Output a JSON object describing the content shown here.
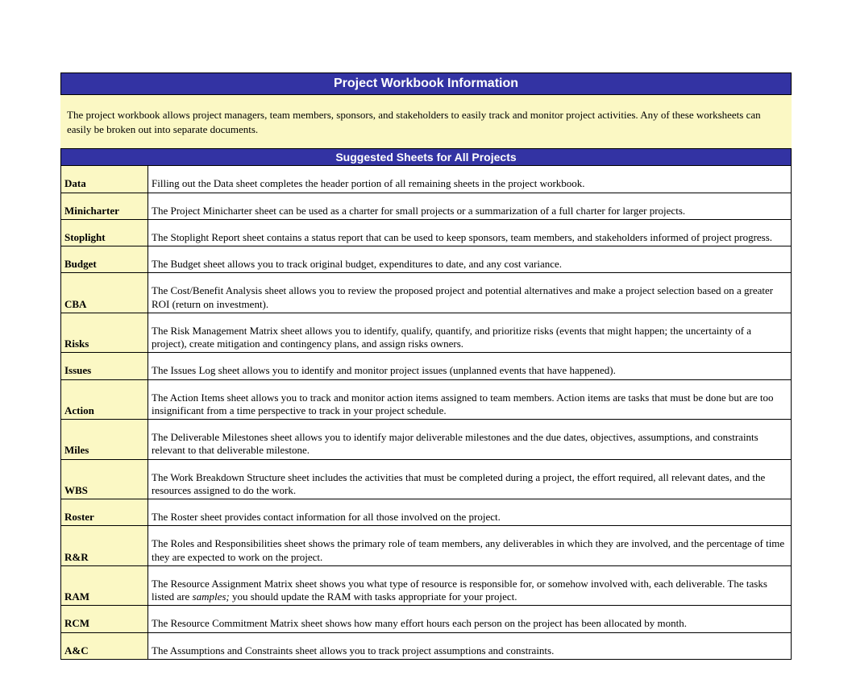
{
  "colors": {
    "header_bg": "#3333a3",
    "header_text": "#ffffff",
    "highlight_bg": "#fbf8c4",
    "border": "#000000",
    "body_text": "#000000",
    "page_bg": "#ffffff"
  },
  "typography": {
    "title_font": "Arial",
    "title_size_pt": 16,
    "section_size_pt": 14,
    "body_font": "Times New Roman",
    "body_size_pt": 13
  },
  "title": "Project Workbook Information",
  "intro": "The project workbook allows project managers, team members, sponsors, and stakeholders to easily track and monitor project activities. Any of these worksheets can easily be broken out into separate documents.",
  "section_header": "Suggested Sheets for All Projects",
  "sheets": [
    {
      "name": "Data",
      "description": "Filling out the Data sheet completes the header portion of all remaining sheets in the project workbook."
    },
    {
      "name": "Minicharter",
      "description": "The Project Minicharter sheet can be used as a charter for small projects or a summarization of a full charter for larger projects."
    },
    {
      "name": "Stoplight",
      "description": "The Stoplight Report sheet contains a status report that can be used to keep sponsors, team members, and stakeholders informed of project progress."
    },
    {
      "name": "Budget",
      "description": "The Budget sheet allows you to track original budget, expenditures to date, and any cost variance."
    },
    {
      "name": "CBA",
      "description": "The Cost/Benefit Analysis sheet allows you to review the proposed project and potential alternatives and make a project selection based on a greater ROI (return on investment)."
    },
    {
      "name": "Risks",
      "description": "The Risk Management Matrix sheet allows you to identify, qualify, quantify, and prioritize risks (events that might happen; the uncertainty of a project), create mitigation and contingency plans, and assign risks owners."
    },
    {
      "name": "Issues",
      "description": "The Issues Log sheet allows you to identify and monitor project issues (unplanned events that have happened)."
    },
    {
      "name": "Action",
      "description": "The Action Items sheet allows you to track and monitor action items assigned to team members. Action items are tasks that must be done but are too insignificant from a time perspective to track in your project schedule."
    },
    {
      "name": "Miles",
      "description": "The Deliverable Milestones sheet allows you to identify major deliverable milestones and the due dates, objectives, assumptions, and constraints relevant to that deliverable milestone."
    },
    {
      "name": "WBS",
      "description": "The Work Breakdown Structure sheet includes the activities that must be completed during a project, the effort required, all relevant dates, and the resources assigned to do the work."
    },
    {
      "name": "Roster",
      "description": "The Roster sheet provides contact information for all those involved on the project."
    },
    {
      "name": "R&R",
      "description": "The Roles and Responsibilities sheet shows the primary role of team members, any deliverables in which they are involved, and the percentage of time they are expected to work on the project."
    },
    {
      "name": "RAM",
      "description_prefix": "The Resource Assignment Matrix sheet shows you what type of resource is responsible for, or somehow involved with, each deliverable. The tasks listed are ",
      "description_italic": "samples;",
      "description_suffix": " you should update the RAM with tasks appropriate for your project."
    },
    {
      "name": "RCM",
      "description": "The Resource Commitment Matrix sheet shows how many effort hours each person on the project has been allocated by month."
    },
    {
      "name": "A&C",
      "description": "The Assumptions and Constraints sheet allows you to track project assumptions and constraints."
    }
  ]
}
